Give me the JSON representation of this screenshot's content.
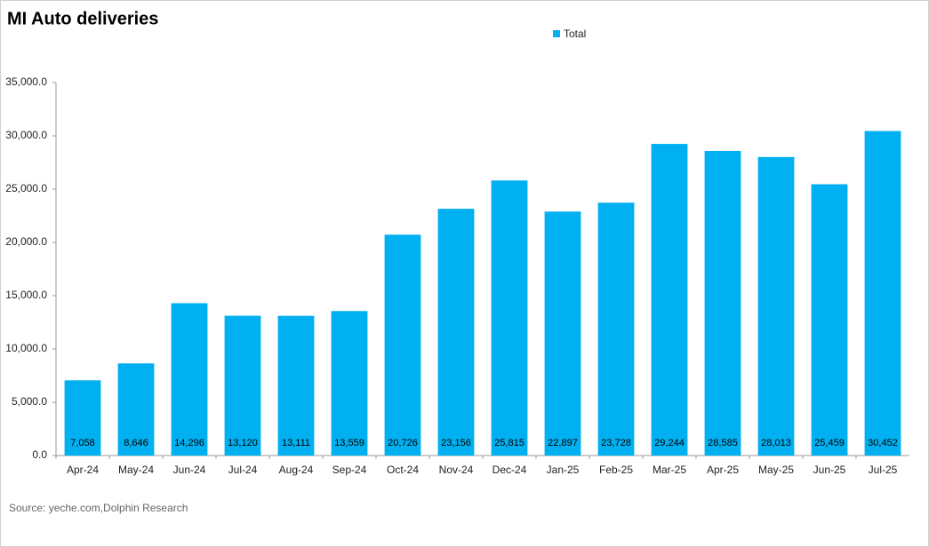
{
  "chart_data": {
    "type": "bar",
    "title": "MI Auto deliveries",
    "categories": [
      "Apr-24",
      "May-24",
      "Jun-24",
      "Jul-24",
      "Aug-24",
      "Sep-24",
      "Oct-24",
      "Nov-24",
      "Dec-24",
      "Jan-25",
      "Feb-25",
      "Mar-25",
      "Apr-25",
      "May-25",
      "Jun-25",
      "Jul-25"
    ],
    "series": [
      {
        "name": "Total",
        "color": "#00b0f0",
        "values": [
          7058,
          8646,
          14296,
          13120,
          13111,
          13559,
          20726,
          23156,
          25815,
          22897,
          23728,
          29244,
          28585,
          28013,
          25459,
          30452
        ],
        "value_labels": [
          "7,058",
          "8,646",
          "14,296",
          "13,120",
          "13,111",
          "13,559",
          "20,726",
          "23,156",
          "25,815",
          "22,897",
          "23,728",
          "29,244",
          "28,585",
          "28,013",
          "25,459",
          "30,452"
        ]
      }
    ],
    "ylim": [
      0,
      35000
    ],
    "yticks": [
      {
        "value": 0,
        "label": "0.0"
      },
      {
        "value": 5000,
        "label": "5,000.0"
      },
      {
        "value": 10000,
        "label": "10,000.0"
      },
      {
        "value": 15000,
        "label": "15,000.0"
      },
      {
        "value": 20000,
        "label": "20,000.0"
      },
      {
        "value": 25000,
        "label": "25,000.0"
      },
      {
        "value": 30000,
        "label": "30,000.0"
      },
      {
        "value": 35000,
        "label": "35,000.0"
      }
    ],
    "legend": "top",
    "source": "Source: yeche.com,Dolphin Research"
  }
}
